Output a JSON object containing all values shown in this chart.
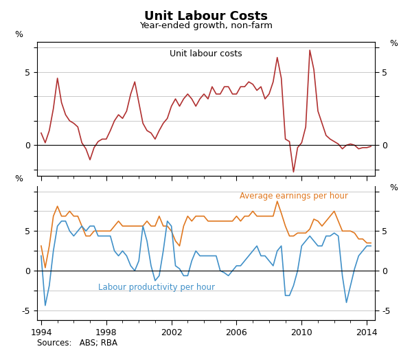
{
  "title": "Unit Labour Costs",
  "subtitle": "Year-ended growth, non-farm",
  "sources": "Sources:   ABS; RBA",
  "top_label": "Unit labour costs",
  "top_color": "#b03030",
  "avg_earnings_color": "#e07820",
  "labour_prod_color": "#4090c8",
  "line_width": 1.2,
  "avg_earnings_label": "Average earnings per hour",
  "labour_prod_label": "Labour productivity per hour",
  "xlim_start": 1993.75,
  "xlim_end": 2014.5,
  "ulc_x": [
    1994.0,
    1994.25,
    1994.5,
    1994.75,
    1995.0,
    1995.25,
    1995.5,
    1995.75,
    1996.0,
    1996.25,
    1996.5,
    1996.75,
    1997.0,
    1997.25,
    1997.5,
    1997.75,
    1998.0,
    1998.25,
    1998.5,
    1998.75,
    1999.0,
    1999.25,
    1999.5,
    1999.75,
    2000.0,
    2000.25,
    2000.5,
    2000.75,
    2001.0,
    2001.25,
    2001.5,
    2001.75,
    2002.0,
    2002.25,
    2002.5,
    2002.75,
    2003.0,
    2003.25,
    2003.5,
    2003.75,
    2004.0,
    2004.25,
    2004.5,
    2004.75,
    2005.0,
    2005.25,
    2005.5,
    2005.75,
    2006.0,
    2006.25,
    2006.5,
    2006.75,
    2007.0,
    2007.25,
    2007.5,
    2007.75,
    2008.0,
    2008.25,
    2008.5,
    2008.75,
    2009.0,
    2009.25,
    2009.5,
    2009.75,
    2010.0,
    2010.25,
    2010.5,
    2010.75,
    2011.0,
    2011.25,
    2011.5,
    2011.75,
    2012.0,
    2012.25,
    2012.5,
    2012.75,
    2013.0,
    2013.25,
    2013.5,
    2013.75,
    2014.0,
    2014.25
  ],
  "ulc_y": [
    1.0,
    0.2,
    1.2,
    3.0,
    5.5,
    3.5,
    2.5,
    2.0,
    1.8,
    1.5,
    0.2,
    -0.3,
    -1.2,
    -0.2,
    0.3,
    0.5,
    0.5,
    1.2,
    2.0,
    2.5,
    2.2,
    2.8,
    4.2,
    5.2,
    3.5,
    1.8,
    1.2,
    1.0,
    0.5,
    1.2,
    1.8,
    2.2,
    3.2,
    3.8,
    3.2,
    3.8,
    4.2,
    3.8,
    3.2,
    3.8,
    4.2,
    3.8,
    4.8,
    4.2,
    4.2,
    4.8,
    4.8,
    4.2,
    4.2,
    4.8,
    4.8,
    5.2,
    5.0,
    4.5,
    4.8,
    3.8,
    4.2,
    5.2,
    7.2,
    5.5,
    0.5,
    0.3,
    -2.2,
    -0.2,
    0.2,
    1.5,
    7.8,
    6.2,
    2.8,
    1.8,
    0.8,
    0.5,
    0.3,
    0.1,
    -0.3,
    0.0,
    0.1,
    0.0,
    -0.3,
    -0.2,
    -0.2,
    -0.1
  ],
  "avg_earn_x": [
    1994.0,
    1994.25,
    1994.5,
    1994.75,
    1995.0,
    1995.25,
    1995.5,
    1995.75,
    1996.0,
    1996.25,
    1996.5,
    1996.75,
    1997.0,
    1997.25,
    1997.5,
    1997.75,
    1998.0,
    1998.25,
    1998.5,
    1998.75,
    1999.0,
    1999.25,
    1999.5,
    1999.75,
    2000.0,
    2000.25,
    2000.5,
    2000.75,
    2001.0,
    2001.25,
    2001.5,
    2001.75,
    2002.0,
    2002.25,
    2002.5,
    2002.75,
    2003.0,
    2003.25,
    2003.5,
    2003.75,
    2004.0,
    2004.25,
    2004.5,
    2004.75,
    2005.0,
    2005.25,
    2005.5,
    2005.75,
    2006.0,
    2006.25,
    2006.5,
    2006.75,
    2007.0,
    2007.25,
    2007.5,
    2007.75,
    2008.0,
    2008.25,
    2008.5,
    2008.75,
    2009.0,
    2009.25,
    2009.5,
    2009.75,
    2010.0,
    2010.25,
    2010.5,
    2010.75,
    2011.0,
    2011.25,
    2011.5,
    2011.75,
    2012.0,
    2012.25,
    2012.5,
    2012.75,
    2013.0,
    2013.25,
    2013.5,
    2013.75,
    2014.0,
    2014.25
  ],
  "avg_earn_y": [
    2.5,
    0.3,
    2.5,
    5.5,
    6.5,
    5.5,
    5.5,
    6.0,
    5.5,
    5.5,
    4.5,
    3.5,
    3.5,
    4.0,
    4.0,
    4.0,
    4.0,
    4.0,
    4.5,
    5.0,
    4.5,
    4.5,
    4.5,
    4.5,
    4.5,
    4.5,
    5.0,
    4.5,
    4.5,
    5.5,
    4.5,
    4.5,
    4.0,
    3.0,
    2.5,
    4.5,
    5.5,
    5.0,
    5.5,
    5.5,
    5.5,
    5.0,
    5.0,
    5.0,
    5.0,
    5.0,
    5.0,
    5.0,
    5.5,
    5.0,
    5.5,
    5.5,
    6.0,
    5.5,
    5.5,
    5.5,
    5.5,
    5.5,
    7.0,
    5.8,
    4.5,
    3.5,
    3.5,
    3.8,
    3.8,
    3.8,
    4.2,
    5.2,
    5.0,
    4.5,
    5.0,
    5.5,
    6.0,
    5.0,
    4.0,
    4.0,
    4.0,
    3.8,
    3.2,
    3.2,
    2.8,
    2.8
  ],
  "labour_prod_x": [
    1994.0,
    1994.25,
    1994.5,
    1994.75,
    1995.0,
    1995.25,
    1995.5,
    1995.75,
    1996.0,
    1996.25,
    1996.5,
    1996.75,
    1997.0,
    1997.25,
    1997.5,
    1997.75,
    1998.0,
    1998.25,
    1998.5,
    1998.75,
    1999.0,
    1999.25,
    1999.5,
    1999.75,
    2000.0,
    2000.25,
    2000.5,
    2000.75,
    2001.0,
    2001.25,
    2001.5,
    2001.75,
    2002.0,
    2002.25,
    2002.5,
    2002.75,
    2003.0,
    2003.25,
    2003.5,
    2003.75,
    2004.0,
    2004.25,
    2004.5,
    2004.75,
    2005.0,
    2005.25,
    2005.5,
    2005.75,
    2006.0,
    2006.25,
    2006.5,
    2006.75,
    2007.0,
    2007.25,
    2007.5,
    2007.75,
    2008.0,
    2008.25,
    2008.5,
    2008.75,
    2009.0,
    2009.25,
    2009.5,
    2009.75,
    2010.0,
    2010.25,
    2010.5,
    2010.75,
    2011.0,
    2011.25,
    2011.5,
    2011.75,
    2012.0,
    2012.25,
    2012.5,
    2012.75,
    2013.0,
    2013.25,
    2013.5,
    2013.75,
    2014.0,
    2014.25
  ],
  "labour_prod_y": [
    1.5,
    -3.5,
    -1.5,
    2.0,
    4.5,
    5.0,
    5.0,
    4.0,
    3.5,
    4.0,
    4.5,
    4.0,
    4.5,
    4.5,
    3.5,
    3.5,
    3.5,
    3.5,
    2.0,
    1.5,
    2.0,
    1.5,
    0.5,
    0.0,
    1.0,
    4.5,
    3.0,
    0.5,
    -1.0,
    -0.5,
    2.0,
    5.0,
    4.5,
    0.5,
    0.2,
    -0.5,
    -0.5,
    1.0,
    2.0,
    1.5,
    1.5,
    1.5,
    1.5,
    1.5,
    0.0,
    -0.2,
    -0.5,
    0.0,
    0.5,
    0.5,
    1.0,
    1.5,
    2.0,
    2.5,
    1.5,
    1.5,
    1.0,
    0.5,
    2.0,
    2.5,
    -2.5,
    -2.5,
    -1.5,
    0.0,
    2.5,
    3.0,
    3.5,
    3.0,
    2.5,
    2.5,
    3.5,
    3.5,
    3.8,
    3.5,
    -0.5,
    -3.2,
    -1.5,
    0.2,
    1.5,
    2.0,
    2.5,
    2.5
  ]
}
